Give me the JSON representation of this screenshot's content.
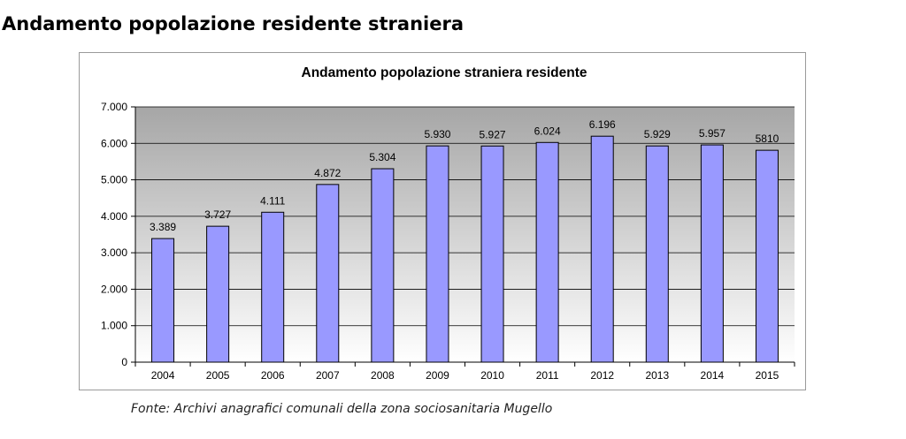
{
  "page": {
    "heading": "Andamento popolazione residente straniera",
    "source": "Fonte:  Archivi anagrafici comunali della zona sociosanitaria Mugello"
  },
  "chart_data": {
    "type": "bar",
    "title": "Andamento popolazione straniera residente",
    "categories": [
      "2004",
      "2005",
      "2006",
      "2007",
      "2008",
      "2009",
      "2010",
      "2011",
      "2012",
      "2013",
      "2014",
      "2015"
    ],
    "values": [
      3389,
      3727,
      4111,
      4872,
      5304,
      5930,
      5927,
      6024,
      6196,
      5929,
      5957,
      5810
    ],
    "data_labels": [
      "3.389",
      "3.727",
      "4.111",
      "4.872",
      "5.304",
      "5.930",
      "5.927",
      "6.024",
      "6.196",
      "5.929",
      "5.957",
      "5810"
    ],
    "ylim": [
      0,
      7000
    ],
    "yticks": [
      0,
      1000,
      2000,
      3000,
      4000,
      5000,
      6000,
      7000
    ],
    "ytick_labels": [
      "0",
      "1.000",
      "2.000",
      "3.000",
      "4.000",
      "5.000",
      "6.000",
      "7.000"
    ],
    "xlabel": "",
    "ylabel": "",
    "grid": true,
    "legend": "none",
    "colors": {
      "bar_fill": "#9999ff",
      "bar_stroke": "#000000",
      "plot_bg_top": "#a6a6a6",
      "plot_bg_bottom": "#ffffff",
      "gridline": "#000000"
    }
  }
}
